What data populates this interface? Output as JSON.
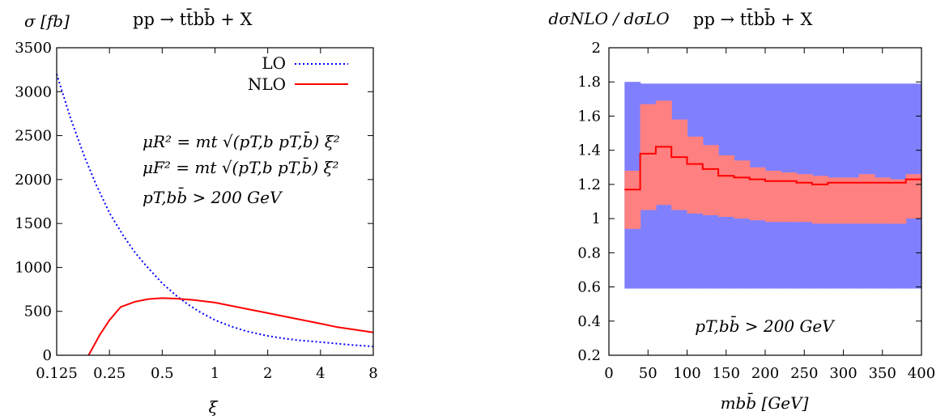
{
  "chart_data": [
    {
      "type": "line",
      "title": "pp → tt̄bb̄ + X",
      "xlabel": "ξ",
      "ylabel": "σ [fb]",
      "x_scale": "log2",
      "xlim": [
        0.125,
        8
      ],
      "ylim": [
        0,
        3500
      ],
      "x_ticks": [
        "0.125",
        "0.25",
        "0.5",
        "1",
        "2",
        "4",
        "8"
      ],
      "x_tick_values": [
        0.125,
        0.25,
        0.5,
        1,
        2,
        4,
        8
      ],
      "y_ticks": [
        "0",
        "500",
        "1000",
        "1500",
        "2000",
        "2500",
        "3000",
        "3500"
      ],
      "y_tick_values": [
        0,
        500,
        1000,
        1500,
        2000,
        2500,
        3000,
        3500
      ],
      "legend_position": "top-right",
      "annotations": {
        "mu_r": "μR² = mt √(pT,b pT,b̄) ξ²",
        "mu_f": "μF² = mt √(pT,b pT,b̄) ξ²",
        "cut": "pT,bb̄ > 200 GeV"
      },
      "series": [
        {
          "name": "LO",
          "style": "dotted",
          "color": "#0000ff",
          "x": [
            0.125,
            0.15,
            0.18,
            0.21,
            0.25,
            0.3,
            0.35,
            0.4,
            0.5,
            0.6,
            0.7,
            0.8,
            1,
            1.25,
            1.5,
            2,
            2.5,
            3,
            4,
            5,
            6,
            8
          ],
          "y": [
            3200,
            2700,
            2260,
            1940,
            1620,
            1360,
            1170,
            1030,
            820,
            680,
            580,
            505,
            400,
            325,
            275,
            220,
            190,
            170,
            150,
            132,
            118,
            100
          ]
        },
        {
          "name": "NLO",
          "style": "solid",
          "color": "#ff0000",
          "x": [
            0.19,
            0.22,
            0.25,
            0.29,
            0.35,
            0.42,
            0.5,
            0.6,
            0.75,
            1,
            1.5,
            2,
            3,
            4,
            5,
            8
          ],
          "y": [
            0,
            230,
            400,
            550,
            610,
            640,
            650,
            645,
            630,
            600,
            530,
            480,
            410,
            360,
            320,
            260
          ]
        }
      ]
    },
    {
      "type": "area",
      "title": "pp → tt̄bb̄ + X",
      "xlabel": "mbb̄ [GeV]",
      "ylabel": "dσNLO / dσLO",
      "xlim": [
        0,
        400
      ],
      "ylim": [
        0.2,
        2
      ],
      "x_ticks": [
        "0",
        "50",
        "100",
        "150",
        "200",
        "250",
        "300",
        "350",
        "400"
      ],
      "x_tick_values": [
        0,
        50,
        100,
        150,
        200,
        250,
        300,
        350,
        400
      ],
      "y_ticks": [
        "0.2",
        "0.4",
        "0.6",
        "0.8",
        "1",
        "1.2",
        "1.4",
        "1.6",
        "1.8",
        "2"
      ],
      "y_tick_values": [
        0.2,
        0.4,
        0.6,
        0.8,
        1,
        1.2,
        1.4,
        1.6,
        1.8,
        2
      ],
      "annotation": "pT,bb̄ > 200 GeV",
      "bins": [
        20,
        40,
        60,
        80,
        100,
        120,
        140,
        160,
        180,
        200,
        220,
        240,
        260,
        280,
        300,
        320,
        340,
        360,
        380,
        400
      ],
      "lo_band": {
        "color": "#8080ff",
        "upper": [
          1.8,
          1.79,
          1.79,
          1.79,
          1.79,
          1.79,
          1.79,
          1.79,
          1.79,
          1.79,
          1.79,
          1.79,
          1.79,
          1.79,
          1.79,
          1.79,
          1.79,
          1.79,
          1.79
        ],
        "lower": [
          0.59,
          0.59,
          0.59,
          0.59,
          0.59,
          0.59,
          0.59,
          0.59,
          0.59,
          0.59,
          0.59,
          0.59,
          0.59,
          0.59,
          0.59,
          0.59,
          0.59,
          0.59,
          0.59
        ]
      },
      "nlo_band": {
        "color": "#ff8080",
        "upper": [
          1.28,
          1.67,
          1.69,
          1.58,
          1.48,
          1.43,
          1.37,
          1.34,
          1.3,
          1.28,
          1.27,
          1.26,
          1.25,
          1.24,
          1.24,
          1.26,
          1.24,
          1.23,
          1.26
        ],
        "lower": [
          0.94,
          1.05,
          1.08,
          1.05,
          1.03,
          1.02,
          1.01,
          1.0,
          0.99,
          0.98,
          0.98,
          0.98,
          0.97,
          0.97,
          0.97,
          0.97,
          0.97,
          0.97,
          1.0
        ]
      },
      "nlo_central": {
        "color": "#ff0000",
        "values": [
          1.17,
          1.38,
          1.42,
          1.36,
          1.32,
          1.29,
          1.25,
          1.24,
          1.23,
          1.22,
          1.22,
          1.21,
          1.2,
          1.21,
          1.21,
          1.21,
          1.21,
          1.21,
          1.23
        ]
      }
    }
  ]
}
